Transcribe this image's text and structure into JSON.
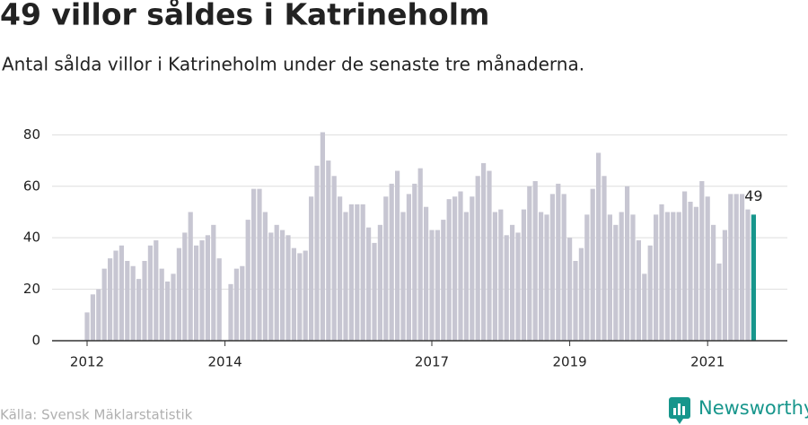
{
  "chart_data": {
    "type": "bar",
    "title": "49 villor såldes i Katrineholm",
    "subtitle": "Antal sålda villor i Katrineholm under de senaste tre månaderna.",
    "source": "Källa: Svensk Mäklarstatistik",
    "brand": "Newsworthy",
    "categories": [
      "2012",
      null,
      null,
      null,
      null,
      null,
      null,
      null,
      null,
      null,
      null,
      null,
      null,
      null,
      null,
      null,
      null,
      null,
      null,
      null,
      null,
      null,
      null,
      null,
      "2014",
      null,
      null,
      null,
      null,
      null,
      null,
      null,
      null,
      null,
      null,
      null,
      null,
      null,
      null,
      null,
      null,
      null,
      null,
      null,
      null,
      null,
      null,
      null,
      null,
      null,
      null,
      null,
      null,
      null,
      null,
      null,
      null,
      null,
      null,
      null,
      "2017",
      null,
      null,
      null,
      null,
      null,
      null,
      null,
      null,
      null,
      null,
      null,
      null,
      null,
      null,
      null,
      null,
      null,
      null,
      null,
      null,
      null,
      null,
      null,
      "2019",
      null,
      null,
      null,
      null,
      null,
      null,
      null,
      null,
      null,
      null,
      null,
      null,
      null,
      null,
      null,
      null,
      null,
      null,
      null,
      null,
      null,
      null,
      null,
      "2021",
      null,
      null,
      null,
      null,
      null,
      null,
      null,
      null
    ],
    "values": [
      11,
      18,
      20,
      28,
      32,
      35,
      37,
      31,
      29,
      24,
      31,
      37,
      39,
      28,
      23,
      26,
      36,
      42,
      50,
      37,
      39,
      41,
      45,
      32,
      null,
      22,
      28,
      29,
      47,
      59,
      59,
      50,
      42,
      45,
      43,
      41,
      36,
      34,
      35,
      56,
      68,
      81,
      70,
      64,
      56,
      50,
      53,
      53,
      53,
      44,
      38,
      45,
      56,
      61,
      66,
      50,
      57,
      61,
      67,
      52,
      43,
      43,
      47,
      55,
      56,
      58,
      50,
      56,
      64,
      69,
      66,
      50,
      51,
      41,
      45,
      42,
      51,
      60,
      62,
      50,
      49,
      57,
      61,
      57,
      40,
      31,
      36,
      49,
      59,
      73,
      64,
      49,
      45,
      50,
      60,
      49,
      39,
      26,
      37,
      49,
      53,
      50,
      50,
      50,
      58,
      54,
      52,
      62,
      56,
      45,
      30,
      43,
      57,
      57,
      57,
      51,
      49
    ],
    "color": "#c7c6d2",
    "highlight_color": "#17968c",
    "ylim": [
      0,
      85
    ],
    "yticks": [
      0,
      20,
      40,
      60,
      80
    ],
    "grid": true
  }
}
